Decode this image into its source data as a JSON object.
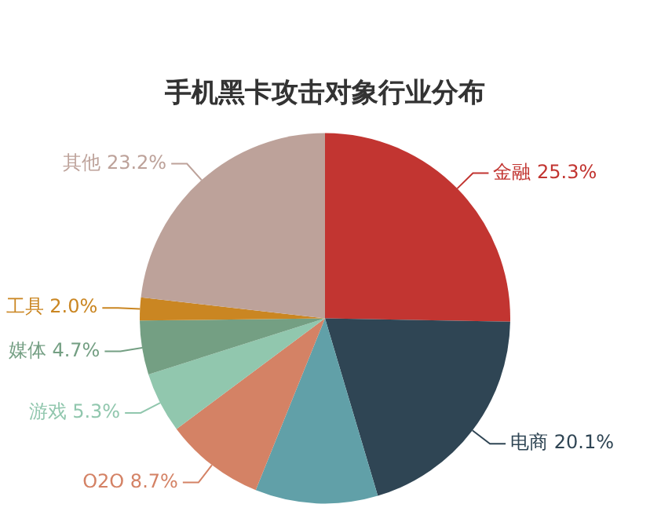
{
  "chart_data": {
    "type": "pie",
    "title": "手机黑卡攻击对象行业分布",
    "categories": [
      "金融",
      "电商",
      null,
      "O2O",
      "游戏",
      "媒体",
      "工具",
      "其他"
    ],
    "values": [
      25.3,
      20.1,
      10.7,
      8.7,
      5.3,
      4.7,
      2.0,
      23.2
    ],
    "value_labels": [
      "25.3%",
      "20.1%",
      null,
      "8.7%",
      "5.3%",
      "4.7%",
      "2.0%",
      "23.2%"
    ],
    "colors": [
      "#c23531",
      "#2f4554",
      "#61a0a8",
      "#d48265",
      "#91c7ae",
      "#749f83",
      "#ca8622",
      "#bda29a"
    ],
    "legend": false
  }
}
